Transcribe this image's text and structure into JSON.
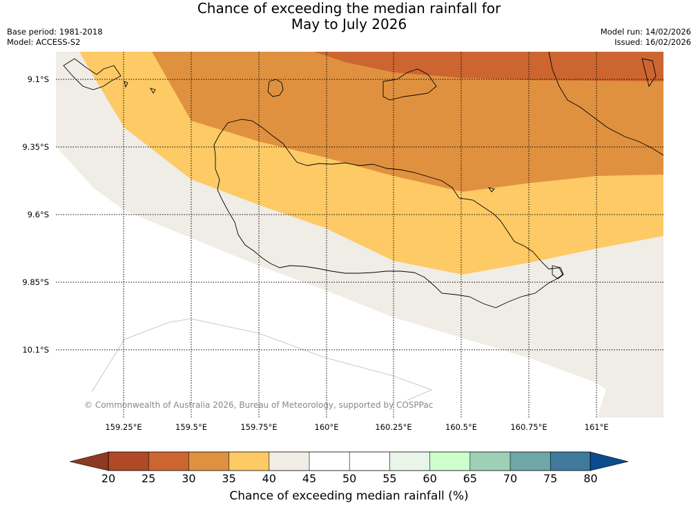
{
  "title": {
    "line1": "Chance of exceeding the median rainfall for",
    "line2": "May to July 2026"
  },
  "meta": {
    "base_period": "Base period: 1981-2018",
    "model": "Model: ACCESS-S2",
    "model_run": "Model run: 14/02/2026",
    "issued": "Issued: 16/02/2026"
  },
  "map": {
    "lat_labels": [
      "9.1°S",
      "9.35°S",
      "9.6°S",
      "9.85°S",
      "10.1°S"
    ],
    "lon_labels": [
      "159.25°E",
      "159.5°E",
      "159.75°E",
      "160°E",
      "160.25°E",
      "160.5°E",
      "160.75°E",
      "161°E"
    ],
    "copyright": "© Commonwealth of Australia 2026, Bureau of Meteorology, supported by COSPPac",
    "regions": [
      {
        "name": "30-35%",
        "color": "#e0913f"
      },
      {
        "name": "25-30%",
        "color": "#cc6530"
      },
      {
        "name": "35-40%",
        "color": "#fdca65"
      },
      {
        "name": "40-45%",
        "color": "#f0ece6"
      }
    ]
  },
  "colorbar": {
    "title": "Chance of exceeding median rainfall (%)",
    "ticks": [
      "20",
      "25",
      "30",
      "35",
      "40",
      "45",
      "50",
      "55",
      "60",
      "65",
      "70",
      "75",
      "80"
    ],
    "under_color": "#8c3a22",
    "over_color": "#0b4c8c",
    "colors": [
      "#b04a26",
      "#cc6530",
      "#e0913f",
      "#fdca65",
      "#f0ece6",
      "#ffffff",
      "#ffffff",
      "#e8f5e8",
      "#ccffcc",
      "#9ed0b8",
      "#6fa6a8",
      "#3f7a9c"
    ]
  }
}
